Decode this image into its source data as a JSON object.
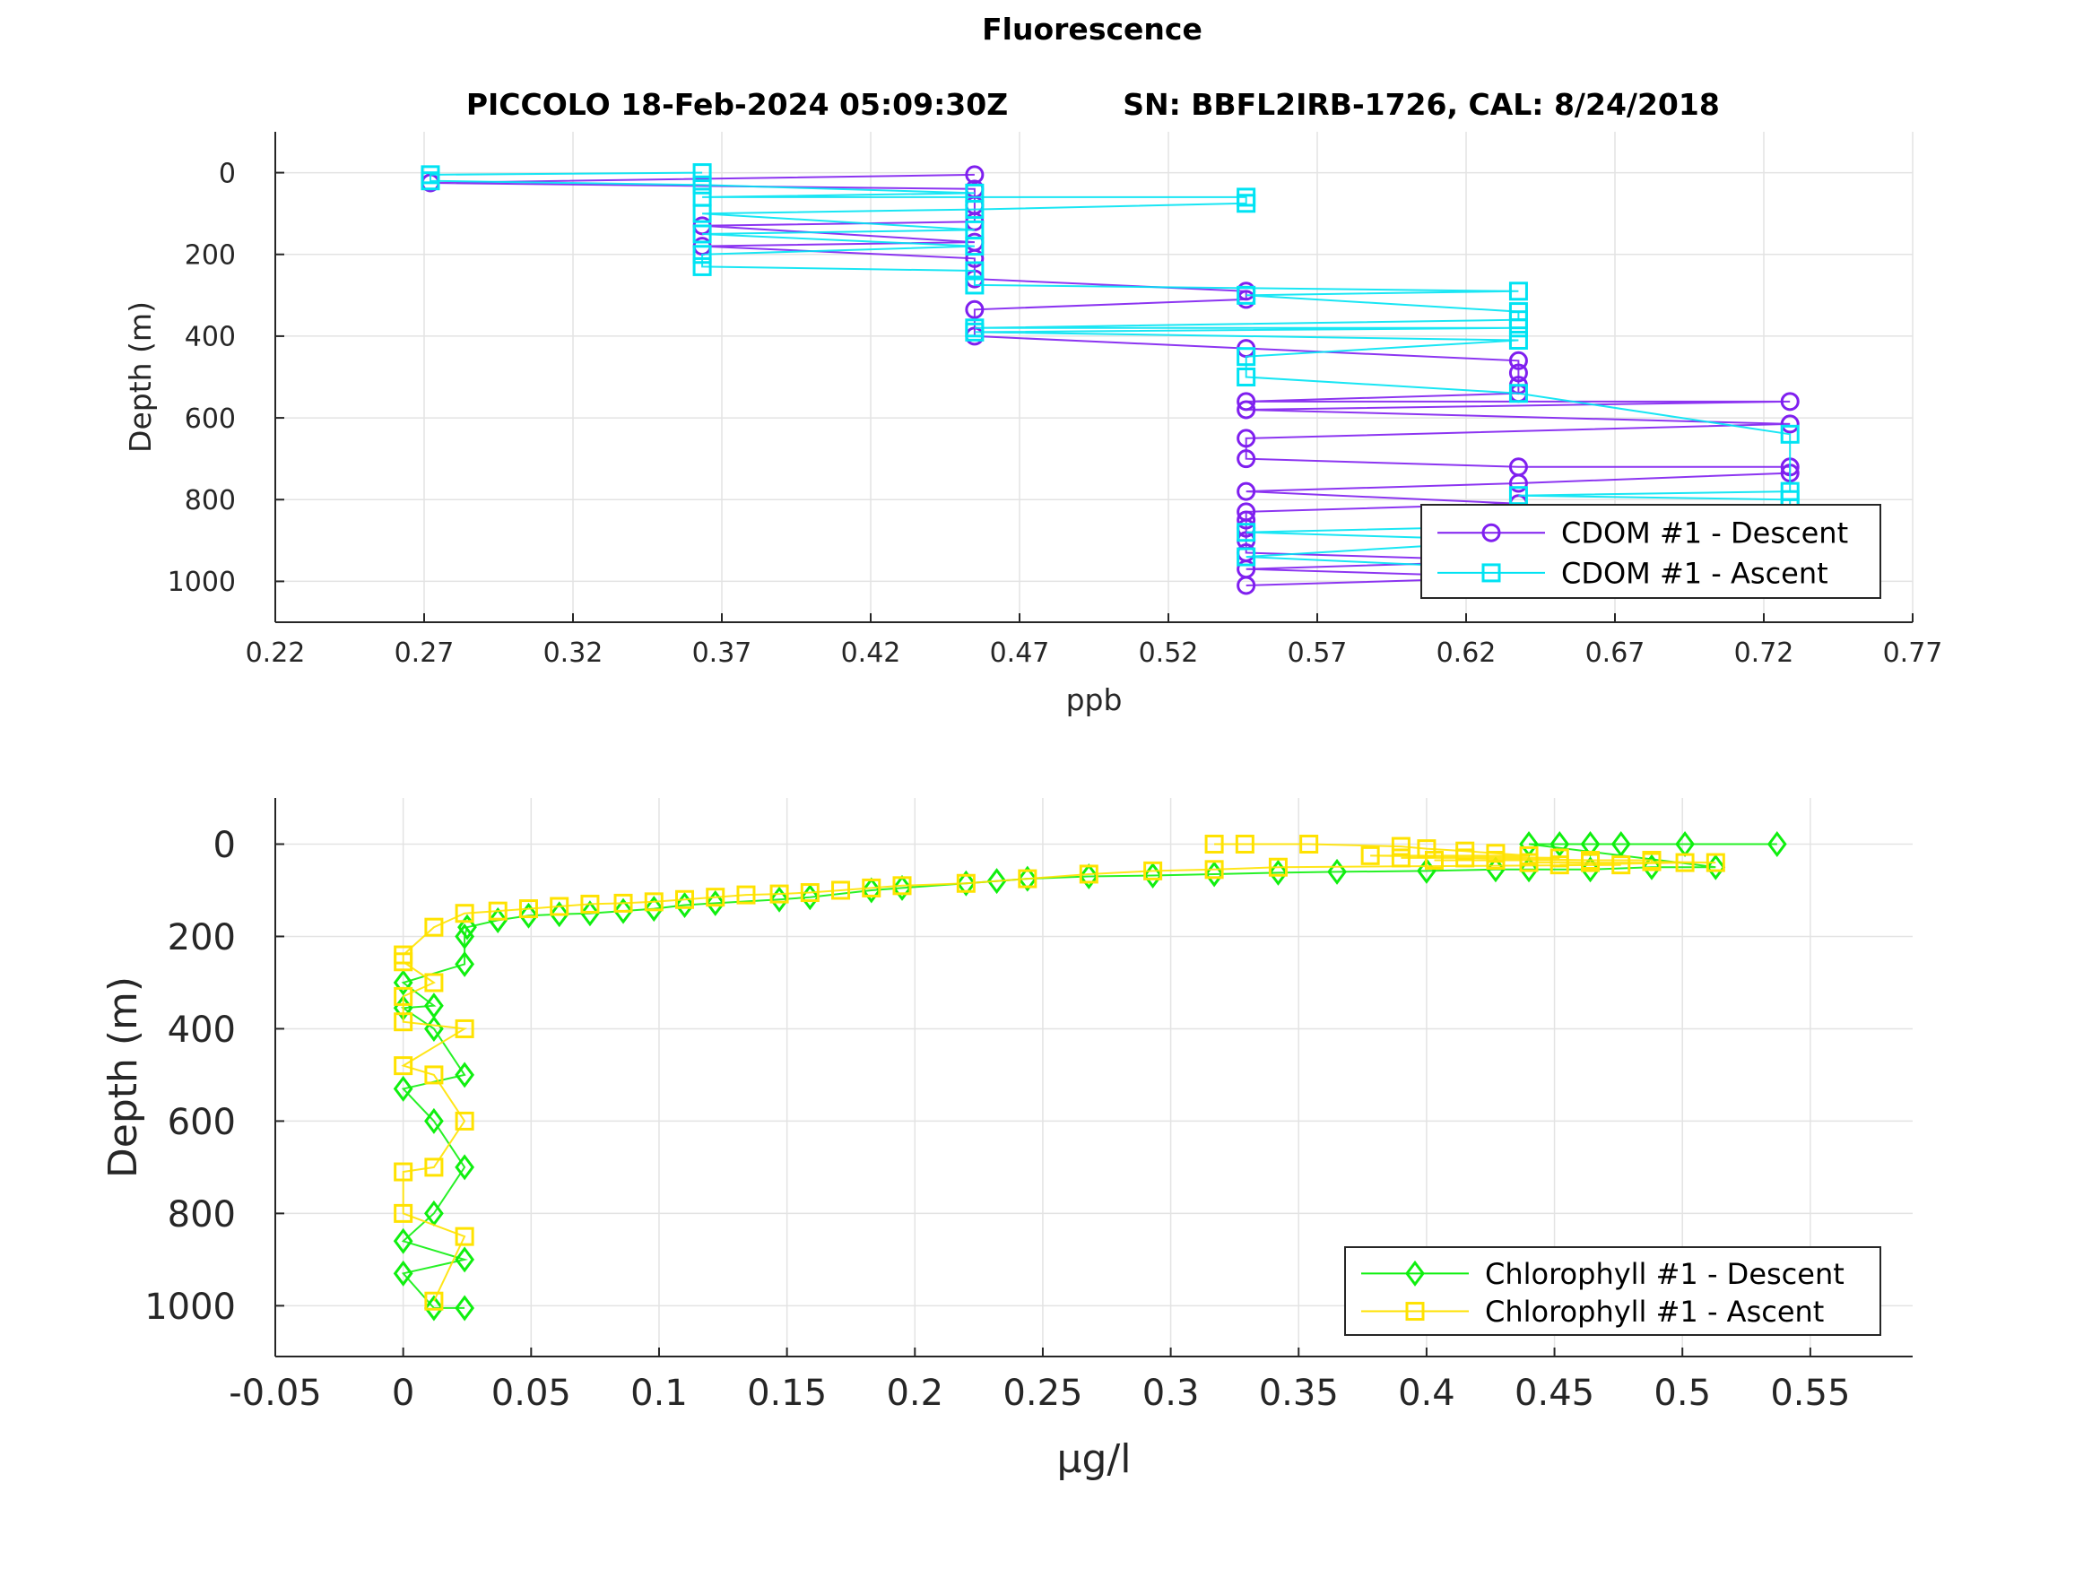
{
  "figure": {
    "title": "Fluorescence",
    "subtitle_left": "PICCOLO 18-Feb-2024 05:09:30Z",
    "subtitle_right": "SN: BBFL2IRB-1726, CAL: 8/24/2018"
  },
  "chart_data": [
    {
      "type": "line",
      "xlabel": "ppb",
      "ylabel": "Depth (m)",
      "xlim": [
        0.22,
        0.77
      ],
      "ylim": [
        1100,
        -100
      ],
      "y_reversed": true,
      "xticks": [
        0.22,
        0.27,
        0.32,
        0.37,
        0.42,
        0.47,
        0.52,
        0.57,
        0.62,
        0.67,
        0.72,
        0.77
      ],
      "xtick_labels": [
        "0.22",
        "0.27",
        "0.32",
        "0.37",
        "0.42",
        "0.47",
        "0.52",
        "0.57",
        "0.62",
        "0.67",
        "0.72",
        "0.77"
      ],
      "yticks": [
        0,
        200,
        400,
        600,
        800,
        1000
      ],
      "ytick_labels": [
        "0",
        "200",
        "400",
        "600",
        "800",
        "1000"
      ],
      "grid": true,
      "legend_location": "bottom-right",
      "series": [
        {
          "name": "CDOM #1 - Descent",
          "color": "#7f1fef",
          "marker": "circle",
          "x": [
            0.2721,
            0.3634,
            0.3634,
            0.4549,
            0.4549,
            0.4549,
            0.4549,
            0.4549,
            0.4549,
            0.4549,
            0.5461,
            0.5461,
            0.4549,
            0.4549,
            0.5461,
            0.6376,
            0.6376,
            0.6376,
            0.6376,
            0.5461,
            0.7288,
            0.5461,
            0.7288,
            0.5461,
            0.5461,
            0.6376,
            0.7288,
            0.7288,
            0.6376,
            0.5461,
            0.6376,
            0.5461,
            0.5461,
            0.5461,
            0.5461,
            0.5461,
            0.6376,
            0.5461,
            0.6376,
            0.5461
          ],
          "y": [
            25,
            130,
            180,
            5,
            40,
            80,
            120,
            170,
            210,
            260,
            290,
            310,
            335,
            400,
            430,
            460,
            490,
            520,
            540,
            560,
            560,
            580,
            615,
            650,
            700,
            720,
            720,
            735,
            760,
            780,
            810,
            830,
            850,
            870,
            900,
            930,
            950,
            970,
            990,
            1010
          ]
        },
        {
          "name": "CDOM #1 - Ascent",
          "color": "#00e3f3",
          "marker": "square",
          "x": [
            0.2721,
            0.2721,
            0.3634,
            0.3634,
            0.3634,
            0.3634,
            0.3634,
            0.3634,
            0.3634,
            0.4549,
            0.4549,
            0.4549,
            0.4549,
            0.4549,
            0.4549,
            0.5461,
            0.5461,
            0.4549,
            0.4549,
            0.5461,
            0.6376,
            0.6376,
            0.6376,
            0.6376,
            0.6376,
            0.5461,
            0.5461,
            0.6376,
            0.7288,
            0.7288,
            0.6376,
            0.7288,
            0.7288,
            0.7288,
            0.5461,
            0.6376,
            0.5461,
            0.6376,
            0.6376,
            0.7288
          ],
          "y": [
            5,
            20,
            0,
            30,
            60,
            100,
            150,
            200,
            230,
            50,
            90,
            140,
            180,
            240,
            275,
            60,
            75,
            380,
            390,
            300,
            290,
            340,
            360,
            380,
            410,
            450,
            500,
            540,
            640,
            780,
            790,
            800,
            820,
            850,
            880,
            900,
            940,
            970,
            1000,
            1010
          ]
        }
      ]
    },
    {
      "type": "line",
      "xlabel": "μg/l",
      "ylabel": "Depth (m)",
      "xlim": [
        -0.05,
        0.59
      ],
      "ylim": [
        1110,
        -100
      ],
      "y_reversed": true,
      "xticks": [
        -0.05,
        0,
        0.05,
        0.1,
        0.15,
        0.2,
        0.25,
        0.3,
        0.35,
        0.4,
        0.45,
        0.5,
        0.55
      ],
      "xtick_labels": [
        "-0.05",
        "0",
        "0.05",
        "0.1",
        "0.15",
        "0.2",
        "0.25",
        "0.3",
        "0.35",
        "0.4",
        "0.45",
        "0.5",
        "0.55"
      ],
      "yticks": [
        0,
        200,
        400,
        600,
        800,
        1000
      ],
      "ytick_labels": [
        "0",
        "200",
        "400",
        "600",
        "800",
        "1000"
      ],
      "grid": true,
      "legend_location": "bottom-right",
      "series": [
        {
          "name": "Chlorophyll #1 - Descent",
          "color": "#0fef0f",
          "marker": "diamond",
          "x": [
            0.537,
            0.501,
            0.476,
            0.464,
            0.452,
            0.44,
            0.513,
            0.488,
            0.464,
            0.44,
            0.427,
            0.4,
            0.365,
            0.342,
            0.317,
            0.293,
            0.268,
            0.244,
            0.232,
            0.22,
            0.195,
            0.183,
            0.159,
            0.147,
            0.122,
            0.11,
            0.098,
            0.086,
            0.073,
            0.061,
            0.049,
            0.037,
            0.025,
            0.024,
            0.024,
            0.012,
            0.0,
            0.0,
            0.0,
            0.0,
            0.0,
            0.012,
            0.024,
            0.012,
            0.024,
            0.012,
            0.024,
            0.012,
            0.024
          ],
          "y": [
            0,
            0,
            0,
            0,
            0,
            0,
            50,
            50,
            55,
            55,
            55,
            58,
            60,
            62,
            65,
            68,
            70,
            75,
            80,
            85,
            95,
            100,
            115,
            120,
            128,
            132,
            140,
            145,
            150,
            152,
            155,
            165,
            180,
            200,
            260,
            350,
            300,
            355,
            530,
            860,
            930,
            400,
            500,
            600,
            700,
            800,
            900,
            1005,
            1005
          ]
        },
        {
          "name": "Chlorophyll #1 - Ascent",
          "color": "#ffe200",
          "marker": "square",
          "x": [
            0.317,
            0.329,
            0.354,
            0.39,
            0.4,
            0.415,
            0.427,
            0.44,
            0.452,
            0.464,
            0.488,
            0.513,
            0.378,
            0.39,
            0.403,
            0.415,
            0.427,
            0.44,
            0.452,
            0.464,
            0.476,
            0.488,
            0.501,
            0.342,
            0.317,
            0.293,
            0.268,
            0.244,
            0.22,
            0.195,
            0.183,
            0.171,
            0.159,
            0.147,
            0.134,
            0.122,
            0.11,
            0.098,
            0.086,
            0.073,
            0.061,
            0.049,
            0.037,
            0.024,
            0.012,
            0.0,
            0.0,
            0.0,
            0.0,
            0.0,
            0.0,
            0.0,
            0.012,
            0.024,
            0.012,
            0.024,
            0.012,
            0.024,
            0.012
          ],
          "y": [
            0,
            0,
            0,
            5,
            10,
            15,
            20,
            25,
            30,
            35,
            38,
            40,
            25,
            30,
            35,
            30,
            35,
            40,
            45,
            40,
            45,
            35,
            40,
            50,
            55,
            58,
            65,
            75,
            85,
            90,
            95,
            100,
            105,
            108,
            110,
            115,
            120,
            125,
            128,
            130,
            135,
            140,
            145,
            150,
            180,
            240,
            255,
            330,
            385,
            480,
            710,
            800,
            300,
            400,
            500,
            600,
            700,
            850,
            990
          ]
        }
      ]
    }
  ]
}
